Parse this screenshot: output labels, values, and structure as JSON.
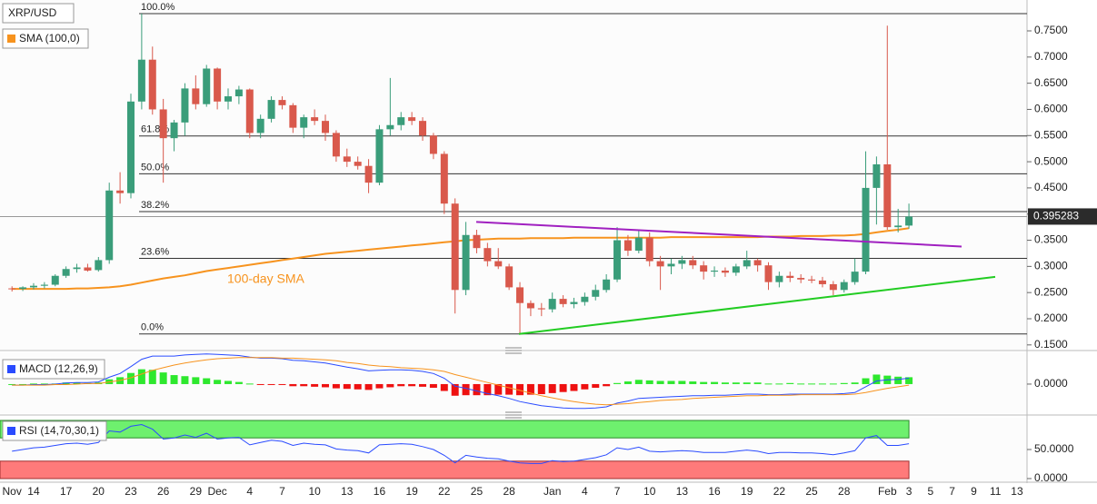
{
  "chart_data": {
    "type": "candlestick",
    "title": "XRP/USD",
    "categories": [
      "Nov",
      null,
      "14",
      null,
      null,
      "17",
      null,
      null,
      "20",
      null,
      null,
      "23",
      null,
      null,
      "26",
      null,
      null,
      "29",
      null,
      "Dec",
      null,
      null,
      "4",
      null,
      null,
      "7",
      null,
      null,
      "10",
      null,
      null,
      "13",
      null,
      null,
      "16",
      null,
      null,
      "19",
      null,
      null,
      "22",
      null,
      null,
      "25",
      null,
      null,
      "28",
      null,
      null,
      null,
      "Jan",
      null,
      null,
      "4",
      null,
      null,
      "7",
      null,
      null,
      "10",
      null,
      null,
      "13",
      null,
      null,
      "16",
      null,
      null,
      "19",
      null,
      null,
      "22",
      null,
      null,
      "25",
      null,
      null,
      "28",
      null,
      null,
      null,
      "Feb",
      null,
      "3",
      null,
      "5",
      null,
      "7",
      null,
      "9",
      null,
      "11",
      null,
      "13"
    ],
    "open": [
      0.258,
      0.257,
      0.26,
      0.263,
      0.265,
      0.282,
      0.295,
      0.298,
      0.293,
      0.312,
      0.445,
      0.44,
      0.615,
      0.695,
      0.6,
      0.545,
      0.575,
      0.64,
      0.61,
      0.678,
      0.615,
      0.625,
      0.638,
      0.555,
      0.582,
      0.618,
      0.608,
      0.565,
      0.585,
      0.578,
      0.555,
      0.51,
      0.5,
      0.492,
      0.46,
      0.562,
      0.57,
      0.585,
      0.578,
      0.55,
      0.515,
      0.42,
      0.255,
      0.36,
      0.335,
      0.31,
      0.3,
      0.26,
      0.23,
      0.22,
      0.218,
      0.238,
      0.228,
      0.232,
      0.242,
      0.255,
      0.275,
      0.35,
      0.33,
      0.355,
      0.31,
      0.3,
      0.305,
      0.312,
      0.302,
      0.29,
      0.292,
      0.288,
      0.3,
      0.312,
      0.302,
      0.27,
      0.282,
      0.278,
      0.275,
      0.273,
      0.266,
      0.255,
      0.27,
      0.29,
      0.45,
      0.495,
      0.375,
      0.378,
      null,
      null,
      null,
      null,
      null,
      null,
      null,
      null,
      null,
      null
    ],
    "high": [
      0.262,
      0.262,
      0.268,
      0.27,
      0.285,
      0.3,
      0.305,
      0.305,
      0.318,
      0.46,
      0.48,
      0.63,
      0.783,
      0.72,
      0.62,
      0.58,
      0.65,
      0.665,
      0.685,
      0.68,
      0.64,
      0.645,
      0.64,
      0.59,
      0.625,
      0.625,
      0.612,
      0.59,
      0.6,
      0.59,
      0.56,
      0.525,
      0.51,
      0.505,
      0.57,
      0.66,
      0.595,
      0.595,
      0.585,
      0.555,
      0.52,
      0.43,
      0.385,
      0.37,
      0.345,
      0.335,
      0.305,
      0.27,
      0.235,
      0.23,
      0.25,
      0.245,
      0.24,
      0.25,
      0.265,
      0.285,
      0.375,
      0.36,
      0.37,
      0.365,
      0.32,
      0.315,
      0.32,
      0.32,
      0.31,
      0.3,
      0.298,
      0.305,
      0.33,
      0.315,
      0.308,
      0.29,
      0.29,
      0.285,
      0.282,
      0.28,
      0.272,
      0.275,
      0.315,
      0.52,
      0.51,
      0.76,
      0.41,
      0.42,
      null,
      null,
      null,
      null,
      null,
      null,
      null,
      null,
      null,
      null
    ],
    "low": [
      0.252,
      0.253,
      0.256,
      0.258,
      0.262,
      0.278,
      0.288,
      0.29,
      0.29,
      0.305,
      0.42,
      0.43,
      0.6,
      0.59,
      0.46,
      0.52,
      0.55,
      0.6,
      0.605,
      0.6,
      0.6,
      0.61,
      0.545,
      0.545,
      0.575,
      0.6,
      0.555,
      0.545,
      0.57,
      0.54,
      0.5,
      0.49,
      0.485,
      0.44,
      0.455,
      0.55,
      0.56,
      0.57,
      0.54,
      0.505,
      0.4,
      0.21,
      0.245,
      0.325,
      0.3,
      0.295,
      0.255,
      0.171,
      0.205,
      0.205,
      0.212,
      0.222,
      0.22,
      0.225,
      0.235,
      0.25,
      0.27,
      0.32,
      0.325,
      0.3,
      0.255,
      0.285,
      0.295,
      0.295,
      0.275,
      0.28,
      0.28,
      0.282,
      0.295,
      0.29,
      0.255,
      0.26,
      0.27,
      0.268,
      0.268,
      0.26,
      0.245,
      0.25,
      0.265,
      0.285,
      0.38,
      0.37,
      0.365,
      0.372,
      null,
      null,
      null,
      null,
      null,
      null,
      null,
      null,
      null,
      null
    ],
    "close": [
      0.257,
      0.26,
      0.263,
      0.265,
      0.282,
      0.295,
      0.298,
      0.292,
      0.312,
      0.445,
      0.44,
      0.615,
      0.695,
      0.6,
      0.545,
      0.575,
      0.64,
      0.61,
      0.678,
      0.615,
      0.625,
      0.638,
      0.555,
      0.582,
      0.618,
      0.608,
      0.565,
      0.585,
      0.578,
      0.555,
      0.51,
      0.5,
      0.492,
      0.46,
      0.562,
      0.57,
      0.585,
      0.578,
      0.55,
      0.515,
      0.42,
      0.255,
      0.36,
      0.335,
      0.31,
      0.3,
      0.26,
      0.23,
      0.22,
      0.218,
      0.238,
      0.228,
      0.232,
      0.242,
      0.255,
      0.275,
      0.35,
      0.33,
      0.355,
      0.31,
      0.3,
      0.305,
      0.312,
      0.302,
      0.29,
      0.292,
      0.288,
      0.3,
      0.312,
      0.302,
      0.27,
      0.282,
      0.278,
      0.275,
      0.273,
      0.266,
      0.255,
      0.27,
      0.29,
      0.45,
      0.495,
      0.375,
      0.378,
      0.395283,
      null,
      null,
      null,
      null,
      null,
      null,
      null,
      null,
      null,
      null
    ],
    "up_color": "#3a9d7a",
    "down_color": "#d9594c",
    "last_price": 0.395283,
    "ylim": [
      0.141,
      0.809
    ],
    "yticks": [
      {
        "value": 0.75,
        "label": "0.7500"
      },
      {
        "value": 0.7,
        "label": "0.7000"
      },
      {
        "value": 0.65,
        "label": "0.6500"
      },
      {
        "value": 0.6,
        "label": "0.6000"
      },
      {
        "value": 0.55,
        "label": "0.5500"
      },
      {
        "value": 0.5,
        "label": "0.5000"
      },
      {
        "value": 0.45,
        "label": "0.4500"
      },
      {
        "value": 0.4,
        "label": "0.4000"
      },
      {
        "value": 0.35,
        "label": "0.3500"
      },
      {
        "value": 0.3,
        "label": "0.3000"
      },
      {
        "value": 0.25,
        "label": "0.2500"
      },
      {
        "value": 0.2,
        "label": "0.2000"
      },
      {
        "value": 0.15,
        "label": "0.1500"
      }
    ],
    "fib": {
      "high": 0.783,
      "low": 0.171,
      "levels": [
        {
          "value": 100,
          "label": "100.0%"
        },
        {
          "value": 61.8,
          "label": "61.8%"
        },
        {
          "value": 50,
          "label": "50.0%"
        },
        {
          "value": 38.2,
          "label": "38.2%"
        },
        {
          "value": 23.6,
          "label": "23.6%"
        },
        {
          "value": 0,
          "label": "0.0%"
        }
      ]
    },
    "sma": {
      "name": "SMA (100,0)",
      "annotation": "100-day SMA",
      "color": "#f7931e",
      "values": [
        0.257,
        0.257,
        0.257,
        0.257,
        0.257,
        0.257,
        0.258,
        0.258,
        0.259,
        0.26,
        0.262,
        0.265,
        0.269,
        0.273,
        0.277,
        0.28,
        0.283,
        0.287,
        0.291,
        0.294,
        0.297,
        0.3,
        0.303,
        0.306,
        0.309,
        0.312,
        0.315,
        0.318,
        0.321,
        0.324,
        0.326,
        0.328,
        0.33,
        0.332,
        0.334,
        0.336,
        0.338,
        0.34,
        0.342,
        0.344,
        0.346,
        0.348,
        0.35,
        0.351,
        0.352,
        0.353,
        0.353,
        0.353,
        0.354,
        0.354,
        0.354,
        0.354,
        0.355,
        0.355,
        0.355,
        0.355,
        0.355,
        0.355,
        0.355,
        0.355,
        0.355,
        0.356,
        0.356,
        0.356,
        0.356,
        0.356,
        0.356,
        0.356,
        0.356,
        0.356,
        0.357,
        0.357,
        0.357,
        0.358,
        0.358,
        0.358,
        0.359,
        0.359,
        0.36,
        0.362,
        0.365,
        0.368,
        0.37,
        0.373,
        null,
        null,
        null,
        null,
        null,
        null,
        null,
        null,
        null,
        null
      ]
    },
    "macd": {
      "name": "MACD (12,26,9)",
      "ylim": [
        -0.055,
        0.06
      ],
      "yticks": [
        {
          "value": 0,
          "label": "0.0000"
        }
      ],
      "macd": {
        "color": "#2a4bff",
        "values": [
          -0.002,
          -0.002,
          -0.001,
          -0.001,
          0.0,
          0.002,
          0.003,
          0.003,
          0.004,
          0.013,
          0.02,
          0.033,
          0.047,
          0.053,
          0.053,
          0.053,
          0.055,
          0.056,
          0.057,
          0.056,
          0.055,
          0.054,
          0.051,
          0.049,
          0.049,
          0.048,
          0.045,
          0.044,
          0.042,
          0.04,
          0.036,
          0.032,
          0.029,
          0.025,
          0.026,
          0.027,
          0.027,
          0.026,
          0.024,
          0.02,
          0.011,
          -0.004,
          -0.008,
          -0.013,
          -0.018,
          -0.022,
          -0.027,
          -0.033,
          -0.037,
          -0.041,
          -0.043,
          -0.045,
          -0.046,
          -0.046,
          -0.045,
          -0.043,
          -0.036,
          -0.032,
          -0.027,
          -0.026,
          -0.025,
          -0.024,
          -0.023,
          -0.022,
          -0.022,
          -0.021,
          -0.021,
          -0.02,
          -0.019,
          -0.019,
          -0.02,
          -0.02,
          -0.019,
          -0.019,
          -0.019,
          -0.019,
          -0.019,
          -0.018,
          -0.016,
          -0.005,
          0.006,
          0.008,
          0.009,
          0.011,
          null,
          null,
          null,
          null,
          null,
          null,
          null,
          null,
          null,
          null
        ]
      },
      "signal": {
        "color": "#f7931e",
        "values": [
          -0.002,
          -0.002,
          -0.002,
          -0.002,
          -0.001,
          -0.001,
          0.0,
          0.001,
          0.001,
          0.004,
          0.007,
          0.012,
          0.019,
          0.026,
          0.031,
          0.036,
          0.04,
          0.043,
          0.046,
          0.048,
          0.049,
          0.05,
          0.05,
          0.05,
          0.05,
          0.049,
          0.049,
          0.048,
          0.047,
          0.046,
          0.044,
          0.041,
          0.039,
          0.036,
          0.034,
          0.033,
          0.031,
          0.03,
          0.029,
          0.027,
          0.024,
          0.018,
          0.013,
          0.008,
          0.003,
          -0.002,
          -0.007,
          -0.012,
          -0.017,
          -0.022,
          -0.026,
          -0.03,
          -0.033,
          -0.036,
          -0.038,
          -0.039,
          -0.038,
          -0.037,
          -0.035,
          -0.033,
          -0.031,
          -0.03,
          -0.029,
          -0.027,
          -0.026,
          -0.025,
          -0.024,
          -0.023,
          -0.022,
          -0.022,
          -0.021,
          -0.021,
          -0.021,
          -0.02,
          -0.02,
          -0.02,
          -0.02,
          -0.02,
          -0.019,
          -0.016,
          -0.012,
          -0.008,
          -0.005,
          -0.002,
          null,
          null,
          null,
          null,
          null,
          null,
          null,
          null,
          null,
          null
        ]
      },
      "histogram": {
        "up_color": "#2ee82e",
        "down_color": "#ee1111",
        "values": [
          0,
          0,
          0.001,
          0.001,
          0.001,
          0.003,
          0.003,
          0.002,
          0.003,
          0.009,
          0.013,
          0.021,
          0.028,
          0.027,
          0.022,
          0.017,
          0.015,
          0.013,
          0.011,
          0.008,
          0.006,
          0.004,
          0.001,
          -0.001,
          -0.001,
          -0.001,
          -0.004,
          -0.004,
          -0.005,
          -0.006,
          -0.008,
          -0.009,
          -0.01,
          -0.011,
          -0.008,
          -0.006,
          -0.004,
          -0.004,
          -0.005,
          -0.007,
          -0.013,
          -0.022,
          -0.021,
          -0.021,
          -0.021,
          -0.02,
          -0.02,
          -0.021,
          -0.02,
          -0.019,
          -0.017,
          -0.015,
          -0.013,
          -0.01,
          -0.007,
          -0.004,
          0.002,
          0.005,
          0.008,
          0.007,
          0.006,
          0.006,
          0.006,
          0.005,
          0.004,
          0.004,
          0.003,
          0.003,
          0.003,
          0.003,
          0.001,
          0.001,
          0.002,
          0.001,
          0.001,
          0.001,
          0.001,
          0.002,
          0.003,
          0.011,
          0.018,
          0.016,
          0.014,
          0.013,
          null,
          null,
          null,
          null,
          null,
          null,
          null,
          null,
          null,
          null
        ]
      }
    },
    "rsi": {
      "name": "RSI (14,70,30,1)",
      "ylim": [
        0,
        100
      ],
      "yticks": [
        {
          "value": 50,
          "label": "50.0000"
        },
        {
          "value": 0,
          "label": "0.0000"
        }
      ],
      "overbought": 70,
      "oversold": 30,
      "overbought_color": "#6ef06e",
      "oversold_color": "#ff7a7a",
      "color": "#2a4bff",
      "values": [
        47,
        50,
        53,
        54,
        57,
        60,
        61,
        59,
        62,
        82,
        80,
        90,
        93,
        85,
        68,
        70,
        75,
        71,
        78,
        68,
        70,
        71,
        58,
        62,
        66,
        64,
        57,
        61,
        59,
        58,
        51,
        49,
        48,
        44,
        58,
        59,
        60,
        59,
        55,
        50,
        40,
        27,
        40,
        37,
        35,
        34,
        30,
        27,
        26,
        26,
        31,
        29,
        30,
        33,
        36,
        41,
        53,
        50,
        54,
        47,
        46,
        47,
        48,
        47,
        45,
        45,
        45,
        47,
        49,
        47,
        43,
        45,
        45,
        44,
        44,
        43,
        41,
        44,
        48,
        70,
        74,
        57,
        57,
        60,
        null,
        null,
        null,
        null,
        null,
        null,
        null,
        null,
        null,
        null
      ]
    }
  }
}
